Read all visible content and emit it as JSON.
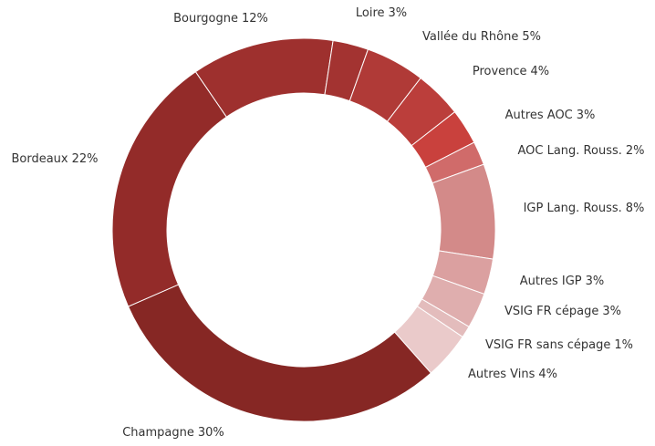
{
  "chart_data": {
    "type": "donut",
    "categories": [
      "Bourgogne",
      "Loire",
      "Vallée du Rhône",
      "Provence",
      "Autres AOC",
      "AOC Lang. Rouss.",
      "IGP Lang. Rouss.",
      "Autres IGP",
      "VSIG FR cépage",
      "VSIG FR sans cépage",
      "Autres Vins",
      "Champagne",
      "Bordeaux"
    ],
    "values": [
      12,
      3,
      5,
      4,
      3,
      2,
      8,
      3,
      3,
      1,
      4,
      30,
      22
    ],
    "value_labels": [
      "12%",
      "3%",
      "5%",
      "4%",
      "3%",
      "2%",
      "8%",
      "3%",
      "3%",
      "1%",
      "4%",
      "30%",
      "22%"
    ],
    "colors": [
      "#9e302e",
      "#a33331",
      "#b03a37",
      "#bb3e3b",
      "#c9413d",
      "#d06b6a",
      "#d38a89",
      "#dba0a0",
      "#dfaeae",
      "#e3bcbc",
      "#eacaca",
      "#862724",
      "#932b29"
    ]
  }
}
